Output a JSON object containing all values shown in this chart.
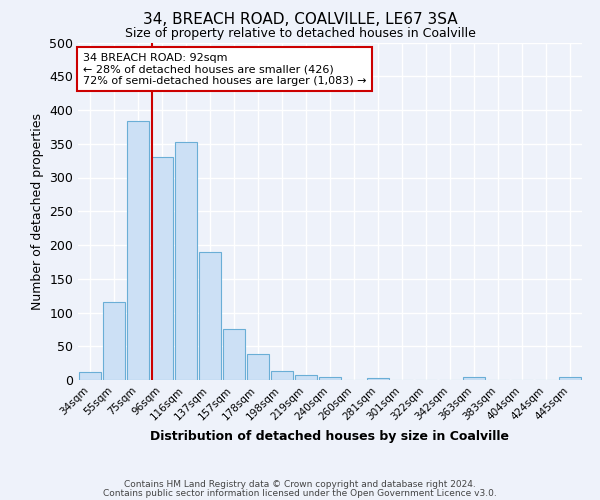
{
  "title": "34, BREACH ROAD, COALVILLE, LE67 3SA",
  "subtitle": "Size of property relative to detached houses in Coalville",
  "xlabel": "Distribution of detached houses by size in Coalville",
  "ylabel": "Number of detached properties",
  "categories": [
    "34sqm",
    "55sqm",
    "75sqm",
    "96sqm",
    "116sqm",
    "137sqm",
    "157sqm",
    "178sqm",
    "198sqm",
    "219sqm",
    "240sqm",
    "260sqm",
    "281sqm",
    "301sqm",
    "322sqm",
    "342sqm",
    "363sqm",
    "383sqm",
    "404sqm",
    "424sqm",
    "445sqm"
  ],
  "values": [
    12,
    116,
    383,
    330,
    353,
    190,
    75,
    38,
    13,
    8,
    4,
    0,
    3,
    0,
    0,
    0,
    4,
    0,
    0,
    0,
    4
  ],
  "bar_color": "#cce0f5",
  "bar_edge_color": "#6aaed6",
  "vline_x_index": 2.58,
  "vline_color": "#cc0000",
  "annotation_box_text": "34 BREACH ROAD: 92sqm\n← 28% of detached houses are smaller (426)\n72% of semi-detached houses are larger (1,083) →",
  "annotation_box_color": "#cc0000",
  "ylim": [
    0,
    500
  ],
  "yticks": [
    0,
    50,
    100,
    150,
    200,
    250,
    300,
    350,
    400,
    450,
    500
  ],
  "background_color": "#eef2fa",
  "grid_color": "#ffffff",
  "footer_line1": "Contains HM Land Registry data © Crown copyright and database right 2024.",
  "footer_line2": "Contains public sector information licensed under the Open Government Licence v3.0."
}
